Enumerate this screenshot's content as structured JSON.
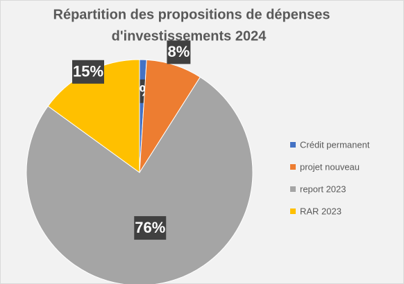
{
  "chart_data": {
    "type": "pie",
    "title": [
      "Répartition des propositions de dépenses",
      "d'investissements 2024"
    ],
    "categories": [
      "Crédit permanent",
      "projet nouveau",
      "report 2023",
      "RAR 2023"
    ],
    "values": [
      1,
      8,
      76,
      15
    ],
    "value_labels": [
      "1%",
      "8%",
      "76%",
      "15%"
    ],
    "colors": [
      "#4472c4",
      "#ed7d31",
      "#a5a5a5",
      "#ffc000"
    ],
    "legend": "right"
  }
}
